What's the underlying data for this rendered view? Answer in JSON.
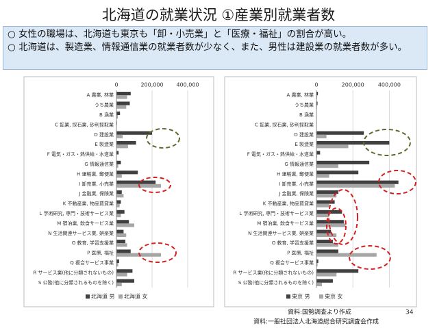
{
  "header": {
    "title": "北海道の就業状況 ①産業別就業者数"
  },
  "notes": [
    "○ 女性の職場は、北海道も東京も「卸・小売業」と「医療・福祉」の割合が高い。",
    "○ 北海道は、製造業、情報通信業の就業者数が少なく、また、男性は建設業の就業者数が多い。"
  ],
  "footer": {
    "source": "資料:国勢調査より作成",
    "page": "34",
    "author": "資料:一般社団法人北海道総合研究調査会作成"
  },
  "chart_data": [
    {
      "type": "bar",
      "orientation": "horizontal",
      "categories": [
        "A 農業, 林業",
        "うち農業",
        "B 漁業",
        "C 鉱業, 採石業, 砂利採取業",
        "D 建設業",
        "E 製造業",
        "F 電気・ガス・熱供給・水道業",
        "G 情報通信業",
        "H 運輸業, 郵便業",
        "I 卸売業, 小売業",
        "J 金融業, 保険業",
        "K 不動産業, 物品賃貸業",
        "L 学術研究, 専門・技術サービス業",
        "M 宿泊業, 飲食サービス業",
        "N 生活関連サービス業, 娯楽業",
        "O 教育, 学習支援業",
        "P 医療, 福祉",
        "Q 複合サービス事業",
        "R サービス業(他に分類されないもの)",
        "S 公務(他に分類されるものを除く)"
      ],
      "series": [
        {
          "name": "北海道 男",
          "color": "#404040",
          "values": [
            80000,
            75000,
            20000,
            3000,
            200000,
            110000,
            12000,
            25000,
            120000,
            220000,
            30000,
            25000,
            45000,
            70000,
            40000,
            50000,
            80000,
            15000,
            90000,
            100000
          ]
        },
        {
          "name": "北海道 女",
          "color": "#a6a6a6",
          "values": [
            60000,
            55000,
            8000,
            1000,
            35000,
            65000,
            2000,
            10000,
            30000,
            250000,
            40000,
            18000,
            25000,
            100000,
            55000,
            60000,
            250000,
            10000,
            60000,
            30000
          ]
        }
      ],
      "xlim": [
        0,
        500000
      ],
      "xticks": [
        0,
        {
          "value": 200000,
          "label": "200,000"
        },
        {
          "value": 400000,
          "label": "400,000"
        }
      ],
      "grid": true,
      "legend": "bottom"
    },
    {
      "type": "bar",
      "orientation": "horizontal",
      "categories": [
        "A 農業, 林業",
        "うち農業",
        "B 漁業",
        "C 鉱業, 採石業, 砂利採取業",
        "D 建設業",
        "E 製造業",
        "F 電気・ガス・熱供給・水道業",
        "G 情報通信業",
        "H 運輸業, 郵便業",
        "I 卸売業, 小売業",
        "J 金融業, 保険業",
        "K 不動産業, 物品賃貸業",
        "L 学術研究, 専門・技術サービス業",
        "M 宿泊業, 飲食サービス業",
        "N 生活関連サービス業, 娯楽業",
        "O 教育, 学習支援業",
        "P 医療, 福祉",
        "Q 複合サービス事業",
        "R サービス業(他に分類されないもの)",
        "S 公務(他に分類されるものを除く)"
      ],
      "series": [
        {
          "name": "東京 男",
          "color": "#404040",
          "values": [
            8000,
            6000,
            1000,
            2000,
            260000,
            400000,
            20000,
            290000,
            230000,
            450000,
            120000,
            100000,
            140000,
            150000,
            80000,
            90000,
            120000,
            10000,
            230000,
            90000
          ]
        },
        {
          "name": "東京 女",
          "color": "#a6a6a6",
          "values": [
            4000,
            3000,
            500,
            1000,
            55000,
            175000,
            4000,
            120000,
            70000,
            430000,
            110000,
            70000,
            70000,
            160000,
            110000,
            120000,
            330000,
            6000,
            110000,
            30000
          ]
        }
      ],
      "xlim": [
        0,
        500000
      ],
      "xticks": [
        0,
        {
          "value": 200000,
          "label": "200,000"
        },
        {
          "value": 400000,
          "label": "400,000"
        }
      ],
      "grid": true,
      "legend": "bottom"
    }
  ]
}
